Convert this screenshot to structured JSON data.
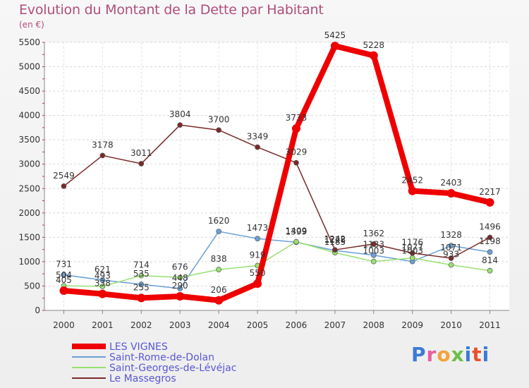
{
  "title": "Evolution du Montant de la Dette par Habitant",
  "subtitle": "(en €)",
  "logo": "Proxiti",
  "colors": {
    "LES VIGNES": "#ee0000",
    "Saint-Rome-de-Dolan": "#6aa0d6",
    "Saint-Georges-de-Lévéjac": "#98e070",
    "Le Massegros": "#7a2a2a"
  },
  "chart_data": {
    "type": "line",
    "title": "Evolution du Montant de la Dette par Habitant",
    "ylabel": "(en €)",
    "ylim": [
      0,
      5500
    ],
    "yticks": [
      0,
      500,
      1000,
      1500,
      2000,
      2500,
      3000,
      3500,
      4000,
      4500,
      5000,
      5500
    ],
    "grid": true,
    "legend": "bottom-left",
    "categories": [
      "2000",
      "2001",
      "2002",
      "2003",
      "2004",
      "2005",
      "2006",
      "2007",
      "2008",
      "2009",
      "2010",
      "2011"
    ],
    "series": [
      {
        "name": "LES VIGNES",
        "values": [
          405,
          338,
          255,
          290,
          206,
          550,
          3733,
          5425,
          5228,
          2452,
          2403,
          2217
        ]
      },
      {
        "name": "Saint-Rome-de-Dolan",
        "values": [
          731,
          621,
          535,
          448,
          1620,
          1473,
          1399,
          1228,
          1133,
          1003,
          1328,
          1198
        ]
      },
      {
        "name": "Saint-Georges-de-Lévéjac",
        "values": [
          504,
          493,
          714,
          676,
          838,
          919,
          1409,
          1185,
          1003,
          1077,
          933,
          814
        ]
      },
      {
        "name": "Le Massegros",
        "values": [
          2549,
          3178,
          3011,
          3804,
          3700,
          3349,
          3029,
          1242,
          1362,
          1176,
          1071,
          1496
        ]
      }
    ]
  }
}
